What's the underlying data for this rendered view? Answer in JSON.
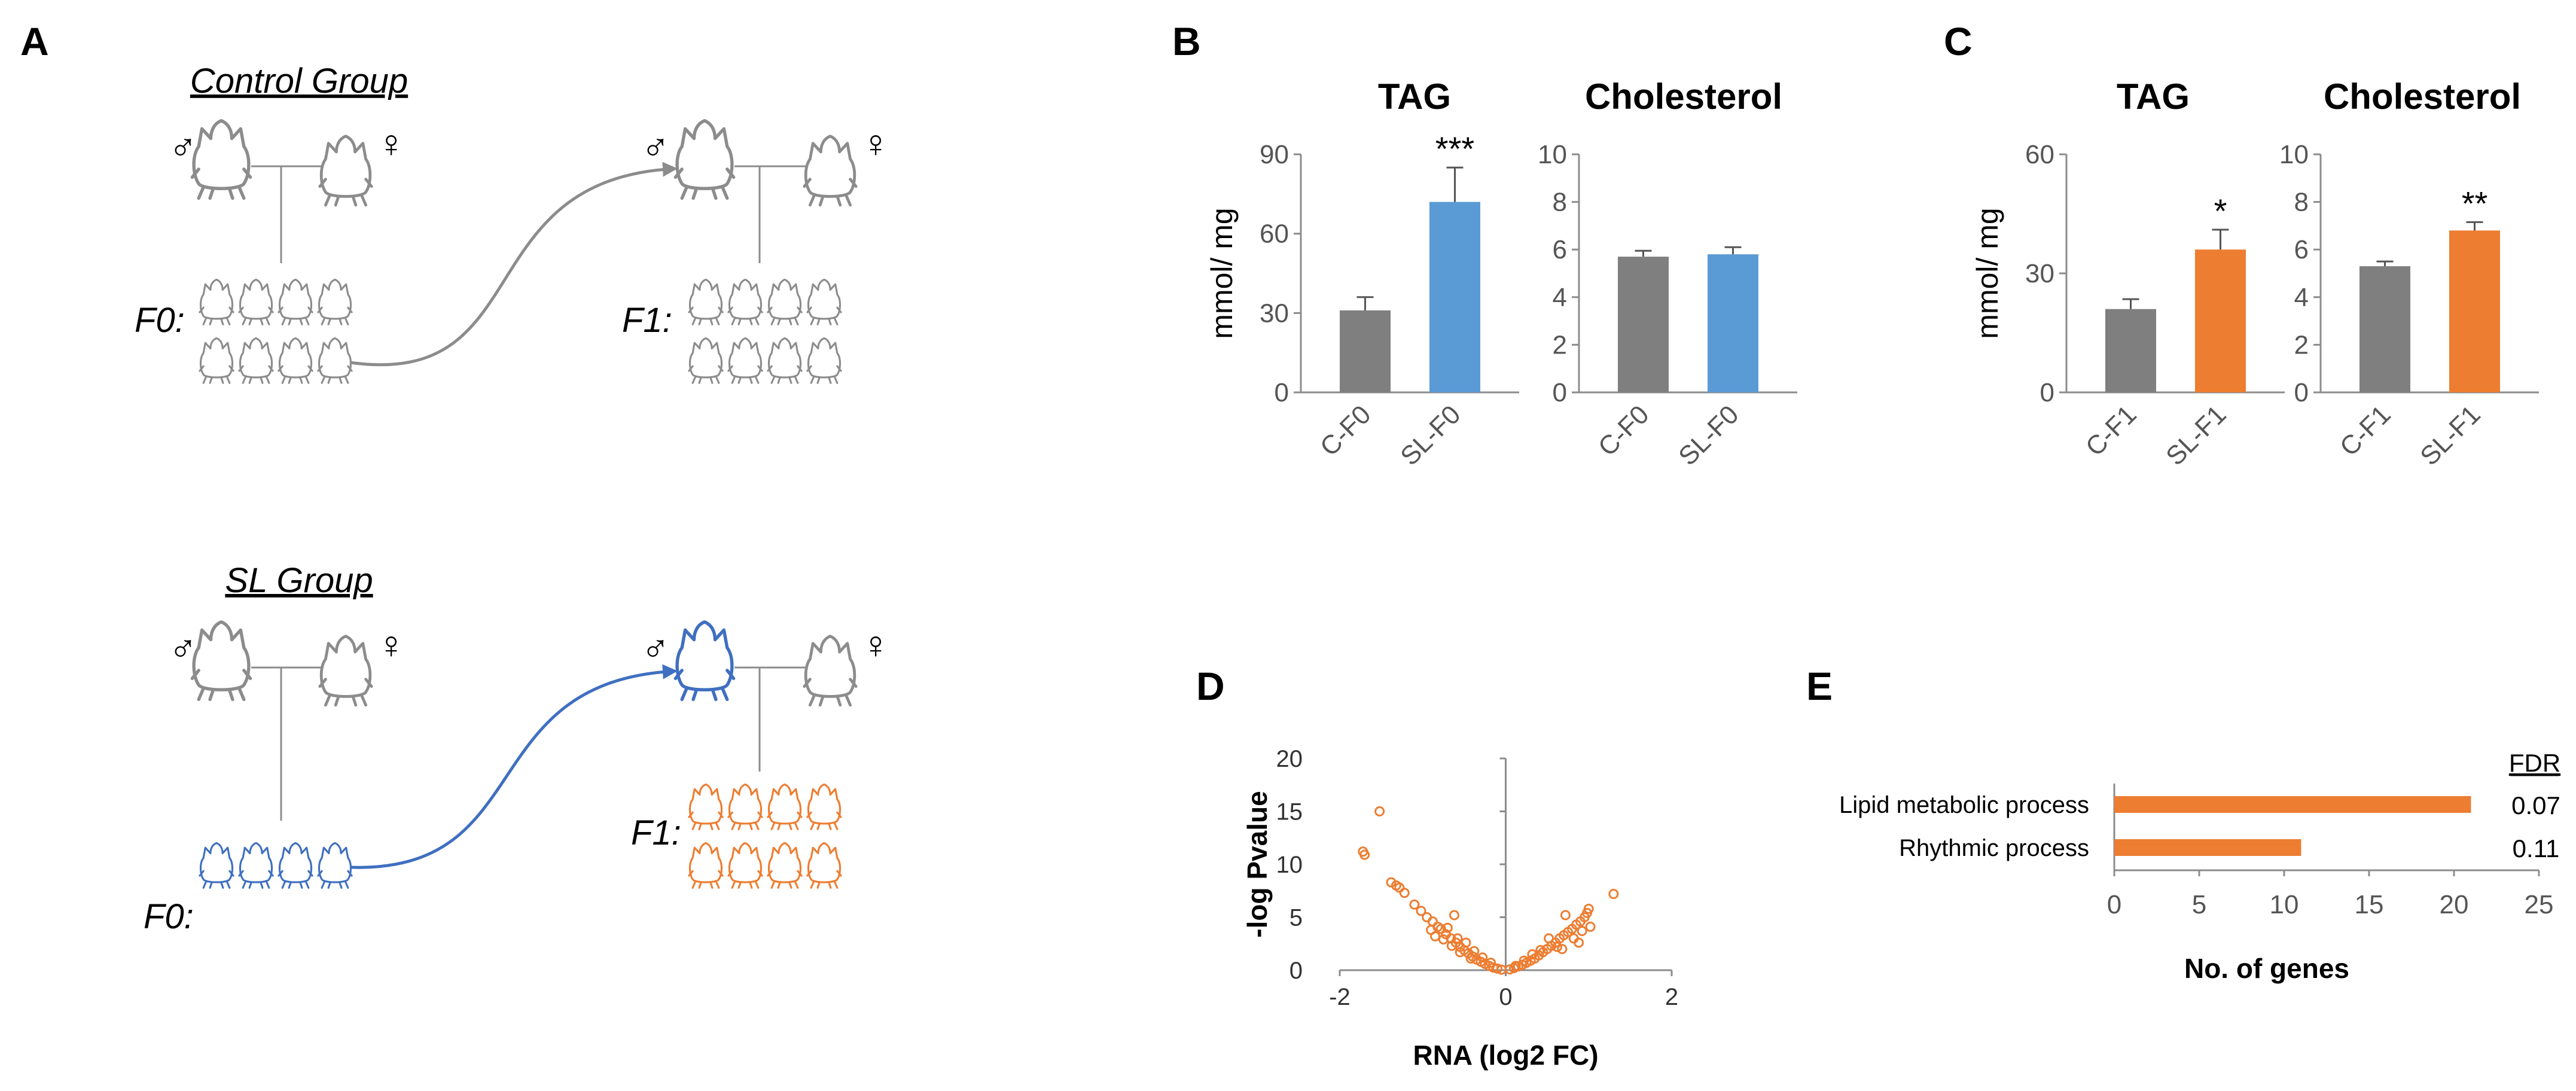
{
  "panel_labels": {
    "a": "A",
    "b": "B",
    "c": "C",
    "d": "D",
    "e": "E"
  },
  "schematic": {
    "control_group_title": "Control Group",
    "sl_group_title": "SL Group",
    "male_symbol": "♂",
    "female_symbol": "♀",
    "f0_label": "F0:",
    "f1_label": "F1:",
    "colors": {
      "gray": "#8c8c8c",
      "blue": "#3f6fc0",
      "orange": "#ed7d31"
    }
  },
  "chart_data": [
    {
      "id": "B-TAG",
      "type": "bar",
      "title": "TAG",
      "ylabel": "mmol/ mg",
      "categories": [
        "C-F0",
        "SL-F0"
      ],
      "values": [
        31,
        72
      ],
      "errors": [
        5,
        13
      ],
      "colors": [
        "#7f7f7f",
        "#5b9bd5"
      ],
      "significance": [
        "",
        "***"
      ],
      "ylim": [
        0,
        90
      ],
      "yticks": [
        0,
        30,
        60,
        90
      ]
    },
    {
      "id": "B-Chol",
      "type": "bar",
      "title": "Cholesterol",
      "ylabel": "",
      "categories": [
        "C-F0",
        "SL-F0"
      ],
      "values": [
        5.7,
        5.8
      ],
      "errors": [
        0.25,
        0.3
      ],
      "colors": [
        "#7f7f7f",
        "#5b9bd5"
      ],
      "significance": [
        "",
        ""
      ],
      "ylim": [
        0,
        10
      ],
      "yticks": [
        0,
        2,
        4,
        6,
        8,
        10
      ]
    },
    {
      "id": "C-TAG",
      "type": "bar",
      "title": "TAG",
      "ylabel": "mmol/ mg",
      "categories": [
        "C-F1",
        "SL-F1"
      ],
      "values": [
        21,
        36
      ],
      "errors": [
        2.5,
        5
      ],
      "colors": [
        "#7f7f7f",
        "#ed7d31"
      ],
      "significance": [
        "",
        "*"
      ],
      "ylim": [
        0,
        60
      ],
      "yticks": [
        0,
        30,
        60
      ]
    },
    {
      "id": "C-Chol",
      "type": "bar",
      "title": "Cholesterol",
      "ylabel": "",
      "categories": [
        "C-F1",
        "SL-F1"
      ],
      "values": [
        5.3,
        6.8
      ],
      "errors": [
        0.2,
        0.35
      ],
      "colors": [
        "#7f7f7f",
        "#ed7d31"
      ],
      "significance": [
        "",
        "**"
      ],
      "ylim": [
        0,
        10
      ],
      "yticks": [
        0,
        2,
        4,
        6,
        8,
        10
      ]
    },
    {
      "id": "D-volcano",
      "type": "scatter",
      "title": "",
      "xlabel": "RNA (log2 FC)",
      "ylabel": "-log Pvalue",
      "xlim": [
        -2,
        2
      ],
      "ylim": [
        0,
        20
      ],
      "xticks": [
        -2,
        0,
        2
      ],
      "yticks": [
        0,
        5,
        10,
        15,
        20
      ],
      "color": "#ed7d31",
      "points": [
        [
          -1.52,
          15.0
        ],
        [
          -1.72,
          11.2
        ],
        [
          -1.7,
          10.9
        ],
        [
          -1.38,
          8.3
        ],
        [
          -1.32,
          8.0
        ],
        [
          -1.28,
          7.8
        ],
        [
          -1.22,
          7.3
        ],
        [
          -1.1,
          6.2
        ],
        [
          -1.02,
          5.6
        ],
        [
          -0.95,
          5.0
        ],
        [
          -0.88,
          4.6
        ],
        [
          -0.82,
          4.1
        ],
        [
          -0.78,
          3.9
        ],
        [
          -0.72,
          3.4
        ],
        [
          -0.66,
          3.0
        ],
        [
          -0.6,
          2.6
        ],
        [
          -0.55,
          2.2
        ],
        [
          -0.5,
          1.9
        ],
        [
          -0.45,
          1.6
        ],
        [
          -0.4,
          1.3
        ],
        [
          -0.35,
          1.0
        ],
        [
          -0.3,
          0.8
        ],
        [
          -0.25,
          0.6
        ],
        [
          -0.2,
          0.4
        ],
        [
          -0.15,
          0.25
        ],
        [
          -0.1,
          0.15
        ],
        [
          -0.05,
          0.05
        ],
        [
          -0.62,
          5.2
        ],
        [
          -0.7,
          4.0
        ],
        [
          -0.58,
          3.0
        ],
        [
          -0.9,
          3.8
        ],
        [
          -0.48,
          2.6
        ],
        [
          -0.38,
          1.8
        ],
        [
          -0.28,
          1.2
        ],
        [
          -0.18,
          0.7
        ],
        [
          -0.85,
          3.2
        ],
        [
          -0.75,
          2.9
        ],
        [
          -0.65,
          2.3
        ],
        [
          -0.55,
          1.7
        ],
        [
          -0.42,
          1.1
        ],
        [
          0.05,
          0.08
        ],
        [
          0.1,
          0.2
        ],
        [
          0.15,
          0.35
        ],
        [
          0.2,
          0.5
        ],
        [
          0.25,
          0.7
        ],
        [
          0.3,
          0.9
        ],
        [
          0.35,
          1.1
        ],
        [
          0.4,
          1.4
        ],
        [
          0.45,
          1.7
        ],
        [
          0.5,
          2.0
        ],
        [
          0.55,
          2.3
        ],
        [
          0.6,
          2.6
        ],
        [
          0.65,
          3.0
        ],
        [
          0.7,
          3.3
        ],
        [
          0.75,
          3.6
        ],
        [
          0.8,
          3.9
        ],
        [
          0.85,
          4.3
        ],
        [
          0.9,
          4.6
        ],
        [
          0.95,
          5.0
        ],
        [
          0.98,
          5.4
        ],
        [
          1.0,
          5.8
        ],
        [
          0.72,
          5.2
        ],
        [
          1.3,
          7.2
        ],
        [
          1.02,
          4.1
        ],
        [
          0.52,
          3.0
        ],
        [
          0.62,
          2.2
        ],
        [
          0.32,
          1.5
        ],
        [
          0.22,
          0.9
        ],
        [
          0.42,
          1.9
        ],
        [
          0.82,
          3.0
        ],
        [
          0.92,
          3.7
        ],
        [
          0.12,
          0.4
        ],
        [
          0.88,
          2.6
        ],
        [
          0.68,
          2.0
        ]
      ]
    },
    {
      "id": "E-hbar",
      "type": "bar",
      "orientation": "horizontal",
      "xlabel": "No. of  genes",
      "categories": [
        "Lipid metabolic process",
        "Rhythmic process"
      ],
      "values": [
        21,
        11
      ],
      "fdr_header": "FDR",
      "fdr": [
        "0.07",
        "0.11"
      ],
      "xlim": [
        0,
        25
      ],
      "xticks": [
        0,
        5,
        10,
        15,
        20,
        25
      ],
      "color": "#ed7d31"
    }
  ]
}
